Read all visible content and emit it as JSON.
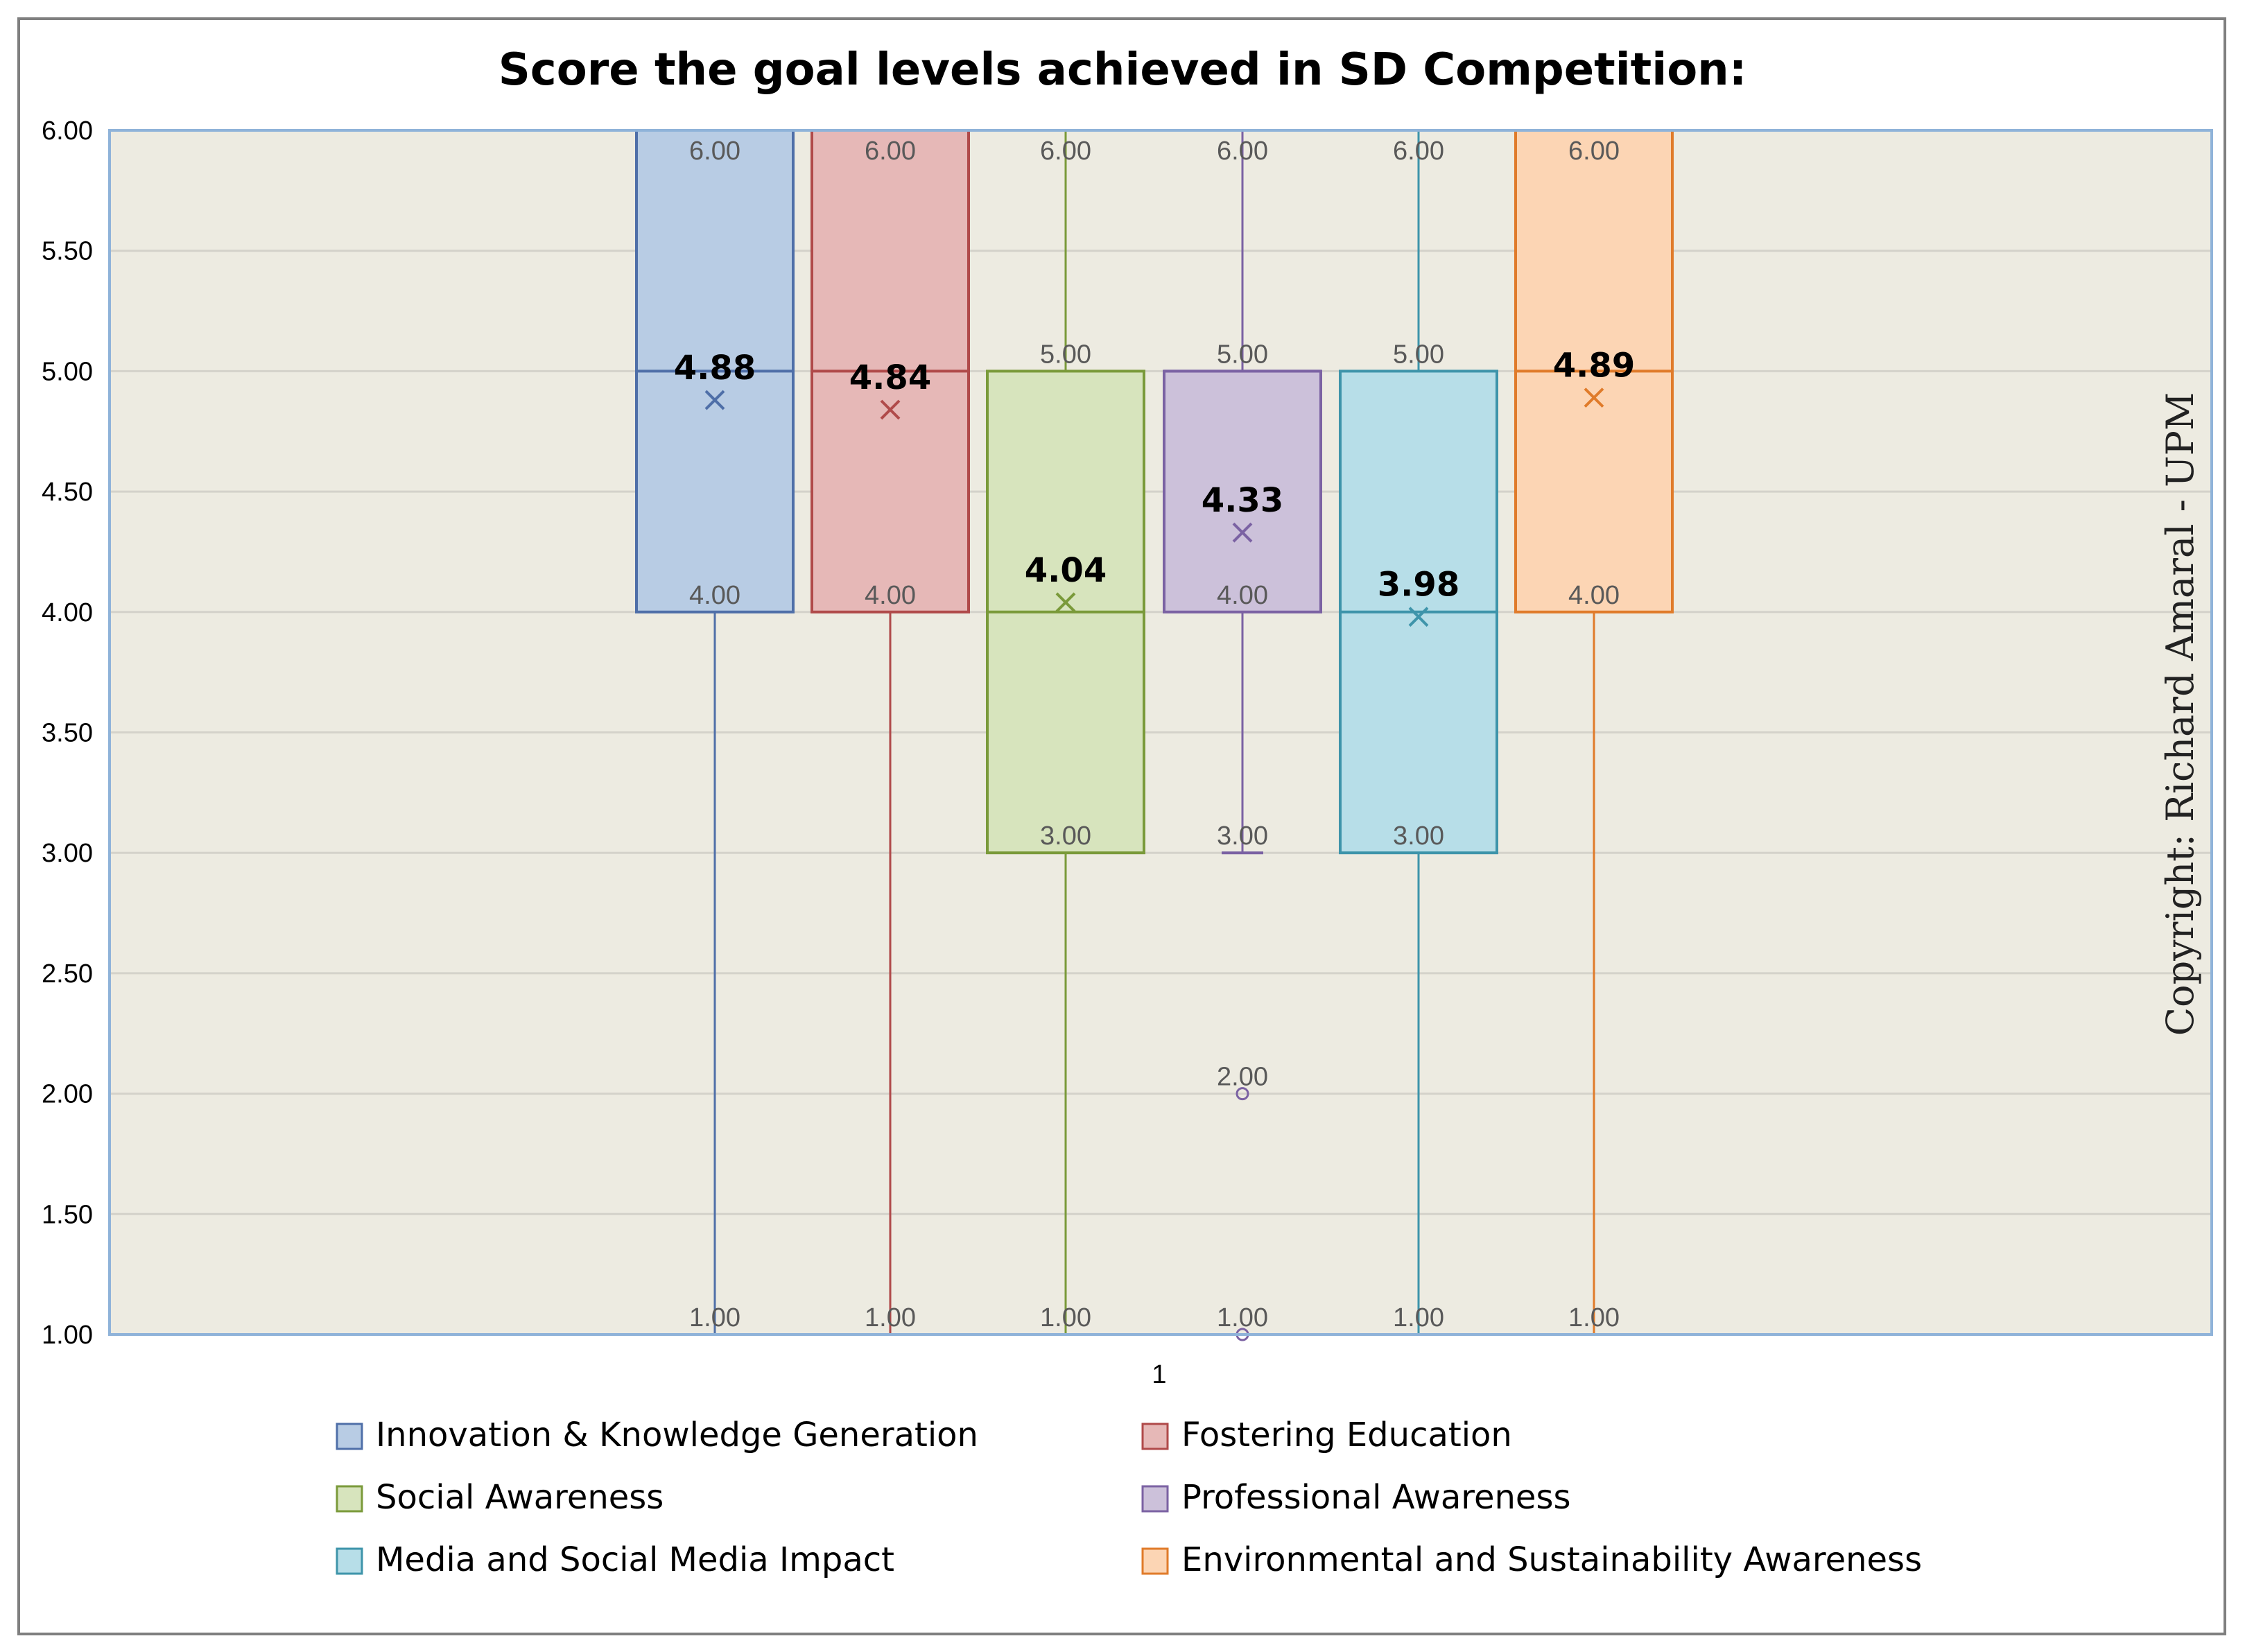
{
  "chart_data": {
    "type": "box",
    "title": "Score the goal levels achieved in SD Competition:",
    "xlabel": "",
    "ylabel": "",
    "x_tick_labels": [
      "1"
    ],
    "ylim": [
      1.0,
      6.0
    ],
    "yticks": [
      "1.00",
      "1.50",
      "2.00",
      "2.50",
      "3.00",
      "3.50",
      "4.00",
      "4.50",
      "5.00",
      "5.50",
      "6.00"
    ],
    "grid": true,
    "legend_position": "bottom",
    "series": [
      {
        "name": "Innovation & Knowledge Generation",
        "color": "#4f6fa8",
        "fill": "#b8cce4",
        "min": 1.0,
        "q1": 4.0,
        "median": 5.0,
        "q3": 6.0,
        "max": 6.0,
        "mean": 4.88,
        "outliers": [],
        "labels": [
          "6.00",
          "4.00",
          "1.00"
        ],
        "mean_label": "4.88"
      },
      {
        "name": "Fostering Education",
        "color": "#b04a4a",
        "fill": "#e6b8b7",
        "min": 1.0,
        "q1": 4.0,
        "median": 5.0,
        "q3": 6.0,
        "max": 6.0,
        "mean": 4.84,
        "outliers": [],
        "labels": [
          "6.00",
          "4.00",
          "1.00"
        ],
        "mean_label": "4.84"
      },
      {
        "name": "Social Awareness",
        "color": "#7a9a3a",
        "fill": "#d7e4bd",
        "min": 1.0,
        "q1": 3.0,
        "median": 4.0,
        "q3": 5.0,
        "max": 6.0,
        "mean": 4.04,
        "outliers": [],
        "labels": [
          "6.00",
          "5.00",
          "3.00",
          "1.00"
        ],
        "mean_label": "4.04"
      },
      {
        "name": "Professional Awareness",
        "color": "#7b62a3",
        "fill": "#ccc1da",
        "min": 3.0,
        "q1": 4.0,
        "median": 5.0,
        "q3": 5.0,
        "max": 6.0,
        "mean": 4.33,
        "outliers": [
          2.0,
          1.0
        ],
        "labels": [
          "6.00",
          "5.00",
          "4.00",
          "3.00",
          "2.00",
          "1.00"
        ],
        "mean_label": "4.33"
      },
      {
        "name": "Media and Social Media Impact",
        "color": "#3e94aa",
        "fill": "#b7dee8",
        "min": 1.0,
        "q1": 3.0,
        "median": 4.0,
        "q3": 5.0,
        "max": 6.0,
        "mean": 3.98,
        "outliers": [],
        "labels": [
          "6.00",
          "5.00",
          "3.00",
          "1.00"
        ],
        "mean_label": "3.98"
      },
      {
        "name": "Environmental and Sustainability Awareness",
        "color": "#e07b2a",
        "fill": "#fcd5b4",
        "min": 1.0,
        "q1": 4.0,
        "median": 5.0,
        "q3": 6.0,
        "max": 6.0,
        "mean": 4.89,
        "outliers": [],
        "labels": [
          "6.00",
          "4.00",
          "1.00"
        ],
        "mean_label": "4.89"
      }
    ],
    "plot_background": "#edebe1",
    "plot_border_color": "#8fb3d9",
    "gridline_color": "#d4d2ca"
  },
  "watermark": "Copyright: Richard Amaral - UPM"
}
